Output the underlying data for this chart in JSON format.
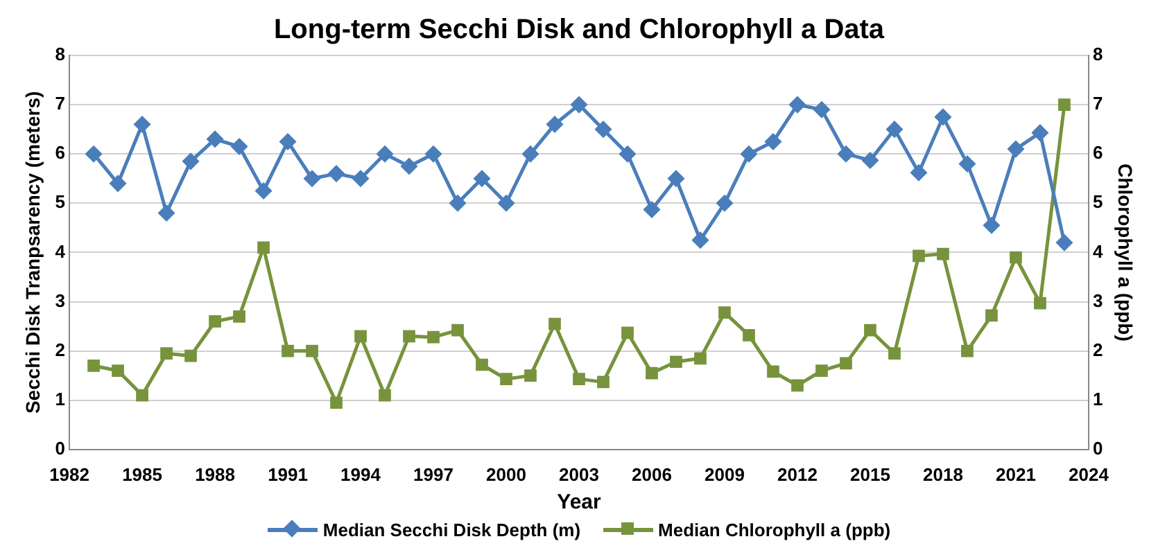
{
  "chart_data": {
    "type": "line",
    "title": "Long-term Secchi Disk and Chlorophyll a Data",
    "xlabel": "Year",
    "ylabel": "Secchi Disk Tranpsarency (meters)",
    "y2label": "Chlorophyll a (ppb)",
    "x": [
      1983,
      1984,
      1985,
      1986,
      1987,
      1988,
      1989,
      1990,
      1991,
      1992,
      1993,
      1994,
      1995,
      1996,
      1997,
      1998,
      1999,
      2000,
      2001,
      2002,
      2003,
      2004,
      2005,
      2006,
      2007,
      2008,
      2009,
      2010,
      2011,
      2012,
      2013,
      2014,
      2015,
      2016,
      2017,
      2018,
      2019,
      2020,
      2021,
      2022,
      2023
    ],
    "series": [
      {
        "name": "Median Secchi Disk Depth (m)",
        "color": "#4a7ebb",
        "marker": "diamond",
        "values": [
          6.0,
          5.4,
          6.6,
          4.8,
          5.85,
          6.3,
          6.15,
          5.25,
          6.25,
          5.5,
          5.6,
          5.5,
          6.0,
          5.75,
          6.0,
          5.0,
          5.5,
          5.0,
          6.0,
          6.6,
          7.0,
          6.5,
          6.0,
          4.87,
          5.5,
          4.25,
          5.0,
          6.0,
          6.25,
          7.0,
          6.9,
          6.0,
          5.87,
          6.5,
          5.62,
          6.75,
          5.8,
          4.55,
          6.1,
          6.43,
          4.2
        ]
      },
      {
        "name": "Median Chlorophyll a (ppb)",
        "color": "#77933c",
        "marker": "square",
        "axis": "y2",
        "values": [
          1.7,
          1.6,
          1.1,
          1.95,
          1.9,
          2.6,
          2.7,
          4.1,
          2.0,
          2.0,
          0.95,
          2.3,
          1.1,
          2.3,
          2.28,
          2.42,
          1.72,
          1.43,
          1.5,
          2.55,
          1.43,
          1.37,
          2.37,
          1.55,
          1.78,
          1.85,
          2.78,
          2.32,
          1.58,
          1.3,
          1.6,
          1.75,
          2.42,
          1.95,
          3.93,
          3.97,
          2.0,
          2.72,
          3.9,
          2.97,
          7.0
        ]
      }
    ],
    "xlim": [
      1982,
      2024
    ],
    "xticks": [
      1982,
      1985,
      1988,
      1991,
      1994,
      1997,
      2000,
      2003,
      2006,
      2009,
      2012,
      2015,
      2018,
      2021,
      2024
    ],
    "ylim": [
      0,
      8
    ],
    "yticks": [
      0,
      1,
      2,
      3,
      4,
      5,
      6,
      7,
      8
    ],
    "y2lim": [
      0,
      8
    ],
    "y2ticks": [
      0,
      1,
      2,
      3,
      4,
      5,
      6,
      7,
      8
    ],
    "grid": "y",
    "legend": "bottom",
    "line_style": "solid"
  }
}
